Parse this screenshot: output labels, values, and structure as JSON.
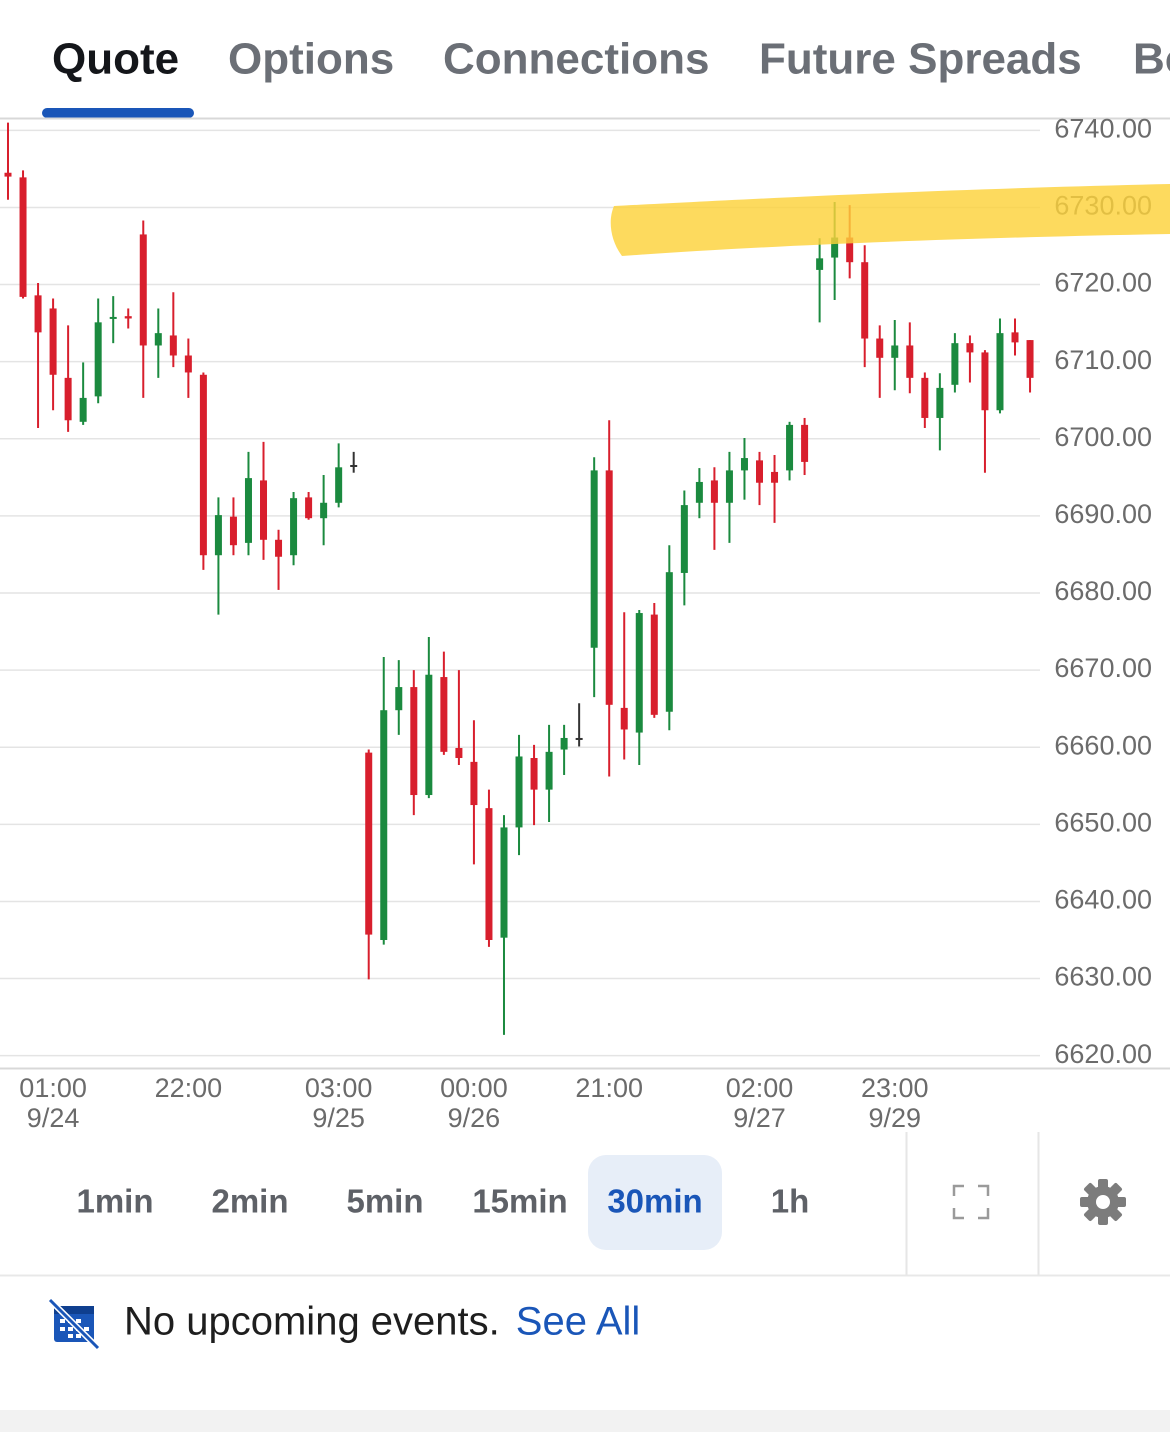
{
  "tabs": [
    "Quote",
    "Options",
    "Connections",
    "Future Spreads",
    "Bo"
  ],
  "active_tab": 0,
  "chart_data": {
    "type": "candlestick",
    "up_color": "#1b8a3f",
    "down_color": "#d81f2d",
    "flat_color": "#333333",
    "categories": [
      null,
      null,
      null,
      "01:00",
      null,
      null,
      null,
      null,
      null,
      null,
      null,
      null,
      "22:00",
      null,
      null,
      null,
      null,
      null,
      null,
      null,
      null,
      null,
      "03:00",
      null,
      null,
      null,
      null,
      null,
      null,
      null,
      null,
      "00:00",
      null,
      null,
      null,
      null,
      null,
      null,
      null,
      null,
      "21:00",
      null,
      null,
      null,
      null,
      null,
      null,
      null,
      null,
      null,
      "02:00",
      null,
      null,
      null,
      null,
      null,
      null,
      null,
      null,
      "23:00",
      null,
      null,
      null,
      null,
      null,
      null,
      null,
      null,
      null
    ],
    "dates": [
      null,
      null,
      null,
      "9/24",
      null,
      null,
      null,
      null,
      null,
      null,
      null,
      null,
      null,
      null,
      null,
      null,
      null,
      null,
      null,
      null,
      null,
      null,
      "9/25",
      null,
      null,
      null,
      null,
      null,
      null,
      null,
      null,
      "9/26",
      null,
      null,
      null,
      null,
      null,
      null,
      null,
      null,
      null,
      null,
      null,
      null,
      null,
      null,
      null,
      null,
      null,
      null,
      "9/27",
      null,
      null,
      null,
      null,
      null,
      null,
      null,
      null,
      "9/29",
      null,
      null,
      null,
      null,
      null,
      null,
      null,
      null,
      null
    ],
    "open": [
      6734.5,
      6733.9,
      6718.6,
      6716.9,
      6707.9,
      6702.2,
      6705.5,
      6715.6,
      6715.9,
      6726.5,
      6712.1,
      6713.4,
      6710.8,
      6708.3,
      6684.9,
      6689.9,
      6686.5,
      6694.6,
      6686.9,
      6684.9,
      6692.4,
      6689.7,
      6691.7,
      6696.6,
      6659.3,
      6635.0,
      6664.8,
      6667.8,
      6653.8,
      6669.1,
      6659.9,
      6658.1,
      6652.1,
      6635.3,
      6649.6,
      6658.6,
      6654.5,
      6659.7,
      6661.2,
      6672.9,
      6695.9,
      6665.1,
      6661.9,
      6677.2,
      6664.6,
      6682.6,
      6691.7,
      6694.6,
      6691.7,
      6695.9,
      6697.2,
      6695.7,
      6695.9,
      6701.8,
      6721.9,
      6723.5,
      6726.1,
      6722.9,
      6713.0,
      6710.5,
      6712.1,
      6707.9,
      6702.7,
      6707.0,
      6712.4,
      6711.2,
      6703.7,
      6713.8,
      6712.8
    ],
    "high": [
      6741.0,
      6734.8,
      6720.2,
      6718.2,
      6714.7,
      6709.9,
      6718.2,
      6718.5,
      6716.9,
      6728.3,
      6716.9,
      6719.0,
      6713.0,
      6708.6,
      6692.4,
      6692.4,
      6698.3,
      6699.6,
      6688.2,
      6693.1,
      6693.1,
      6695.3,
      6699.4,
      6698.3,
      6659.7,
      6671.7,
      6671.3,
      6670.0,
      6674.3,
      6672.4,
      6670.0,
      6663.5,
      6654.5,
      6651.2,
      6661.6,
      6660.3,
      6662.9,
      6662.9,
      6665.7,
      6697.6,
      6702.4,
      6677.5,
      6677.8,
      6678.7,
      6686.2,
      6693.3,
      6696.2,
      6696.3,
      6698.3,
      6700.1,
      6698.3,
      6697.9,
      6702.2,
      6702.7,
      6726.0,
      6730.7,
      6730.3,
      6725.1,
      6714.7,
      6715.4,
      6715.1,
      6708.6,
      6708.5,
      6713.7,
      6713.4,
      6711.5,
      6715.6,
      6715.6,
      6712.8
    ],
    "low": [
      6731.0,
      6718.2,
      6701.4,
      6703.7,
      6700.9,
      6701.8,
      6704.6,
      6712.4,
      6714.3,
      6705.3,
      6707.9,
      6709.3,
      6705.3,
      6683.0,
      6677.2,
      6684.9,
      6684.9,
      6684.3,
      6680.4,
      6683.6,
      6689.5,
      6686.2,
      6691.1,
      6695.6,
      6629.9,
      6634.4,
      6661.6,
      6651.2,
      6653.4,
      6659.0,
      6657.7,
      6644.8,
      6634.1,
      6622.7,
      6646.0,
      6649.9,
      6650.3,
      6656.4,
      6660.1,
      6666.5,
      6656.2,
      6658.4,
      6657.7,
      6663.8,
      6662.2,
      6678.4,
      6689.7,
      6685.6,
      6686.5,
      6692.1,
      6691.4,
      6689.1,
      6694.6,
      6695.3,
      6715.1,
      6718.0,
      6720.8,
      6709.3,
      6705.3,
      6706.3,
      6705.9,
      6701.4,
      6698.5,
      6706.0,
      6707.3,
      6695.6,
      6703.3,
      6710.8,
      6706.0
    ],
    "close": [
      6734.0,
      6718.4,
      6713.8,
      6708.3,
      6702.4,
      6705.3,
      6715.1,
      6715.8,
      6715.6,
      6712.1,
      6713.7,
      6710.8,
      6708.6,
      6684.9,
      6690.1,
      6686.2,
      6694.9,
      6686.9,
      6684.7,
      6692.3,
      6689.7,
      6691.7,
      6696.3,
      6696.6,
      6635.7,
      6664.8,
      6667.8,
      6653.8,
      6669.4,
      6659.4,
      6658.6,
      6652.5,
      6635.0,
      6649.6,
      6658.8,
      6654.5,
      6659.4,
      6661.2,
      6661.2,
      6695.9,
      6665.5,
      6662.3,
      6677.4,
      6664.2,
      6682.7,
      6691.4,
      6694.4,
      6691.7,
      6695.9,
      6697.5,
      6694.3,
      6694.3,
      6701.8,
      6697.0,
      6723.4,
      6726.1,
      6722.9,
      6713.0,
      6710.5,
      6712.1,
      6707.9,
      6702.7,
      6706.6,
      6712.4,
      6711.2,
      6703.7,
      6713.7,
      6712.5,
      6707.9
    ],
    "ylim": [
      6618.4,
      6741.6
    ],
    "yticks": [
      {
        "value": 6740,
        "label": "6740.00"
      },
      {
        "value": 6730,
        "label": "6730.00"
      },
      {
        "value": 6720,
        "label": "6720.00"
      },
      {
        "value": 6710,
        "label": "6710.00"
      },
      {
        "value": 6700,
        "label": "6700.00"
      },
      {
        "value": 6690,
        "label": "6690.00"
      },
      {
        "value": 6680,
        "label": "6680.00"
      },
      {
        "value": 6670,
        "label": "6670.00"
      },
      {
        "value": 6660,
        "label": "6660.00"
      },
      {
        "value": 6650,
        "label": "6650.00"
      },
      {
        "value": 6640,
        "label": "6640.00"
      },
      {
        "value": 6630,
        "label": "6630.00"
      },
      {
        "value": 6620,
        "label": "6620.00"
      }
    ],
    "grid": true
  },
  "intervals": [
    "1min",
    "2min",
    "5min",
    "15min",
    "30min",
    "1h"
  ],
  "selected_interval": 4,
  "footer": {
    "message": "No upcoming events.",
    "link": "See All"
  }
}
